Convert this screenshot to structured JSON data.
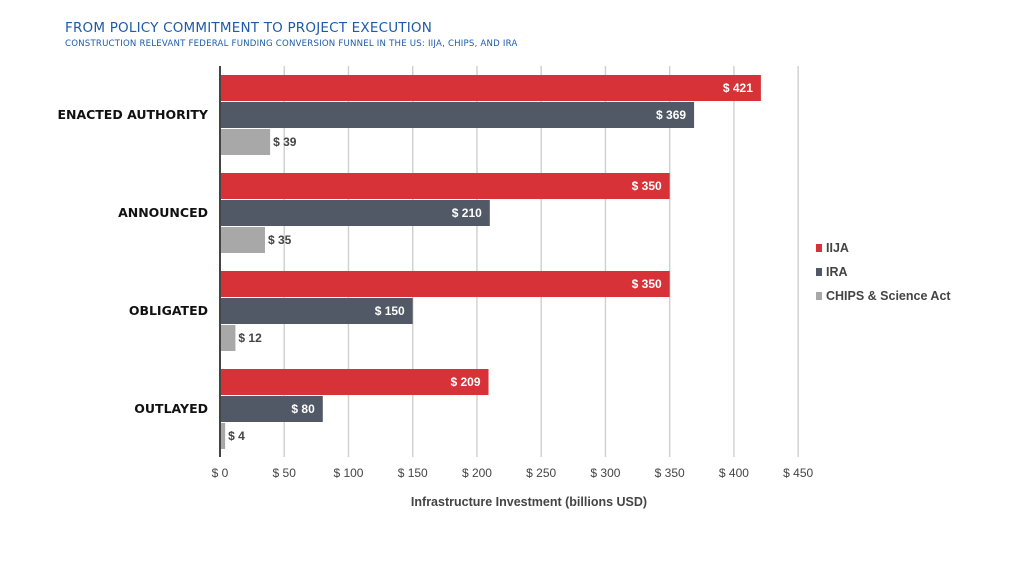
{
  "header": {
    "title": "FROM POLICY COMMITMENT TO PROJECT EXECUTION",
    "subtitle": "CONSTRUCTION RELEVANT FEDERAL FUNDING CONVERSION FUNNEL IN THE US: IIJA, CHIPS, AND IRA"
  },
  "chart_data": {
    "type": "bar",
    "orientation": "horizontal",
    "title": "FROM POLICY COMMITMENT TO PROJECT EXECUTION",
    "subtitle": "CONSTRUCTION RELEVANT FEDERAL FUNDING CONVERSION FUNNEL IN THE US: IIJA, CHIPS, AND IRA",
    "categories": [
      "ENACTED AUTHORITY",
      "ANNOUNCED",
      "OBLIGATED",
      "OUTLAYED"
    ],
    "series": [
      {
        "name": "IIJA",
        "color": "#d63237",
        "values": [
          421,
          350,
          350,
          209
        ]
      },
      {
        "name": "IRA",
        "color": "#505965",
        "values": [
          369,
          210,
          150,
          80
        ]
      },
      {
        "name": "CHIPS & Science Act",
        "color": "#a8a8a8",
        "values": [
          39,
          35,
          12,
          4
        ]
      }
    ],
    "value_prefix": "$ ",
    "xlabel": "Infrastructure Investment (billions USD)",
    "ylabel": "",
    "xlim": [
      0,
      450
    ],
    "xticks": [
      0,
      50,
      100,
      150,
      200,
      250,
      300,
      350,
      400,
      450
    ],
    "xtick_labels": [
      "$ 0",
      "$ 50",
      "$ 100",
      "$ 150",
      "$ 200",
      "$ 250",
      "$ 300",
      "$ 350",
      "$ 400",
      "$ 450"
    ],
    "grid": true,
    "legend_position": "right"
  }
}
